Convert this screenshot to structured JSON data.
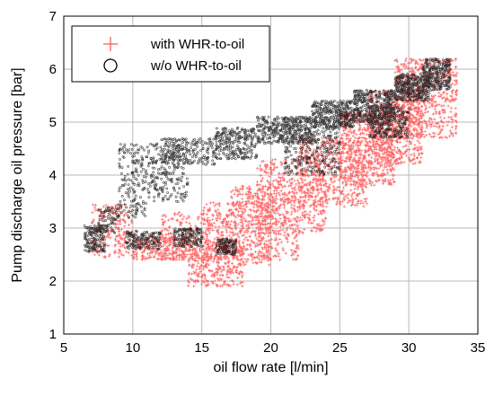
{
  "chart_data": {
    "type": "scatter",
    "xlabel": "oil flow rate [l/min]",
    "ylabel": "Pump discharge oil pressure [bar]",
    "xlim": [
      5,
      35
    ],
    "ylim": [
      1,
      7
    ],
    "xticks": [
      "5",
      "10",
      "15",
      "20",
      "25",
      "30",
      "35"
    ],
    "yticks": [
      "1",
      "2",
      "3",
      "4",
      "5",
      "6",
      "7"
    ],
    "grid": true,
    "legend_position": "top-left",
    "series": [
      {
        "name": "with WHR-to-oil",
        "marker": "plus",
        "color": "#ff5050",
        "clusters": [
          {
            "x": [
              7,
              10
            ],
            "y": [
              2.45,
              3.45
            ],
            "n": 200
          },
          {
            "x": [
              10,
              14
            ],
            "y": [
              2.4,
              2.85
            ],
            "n": 260
          },
          {
            "x": [
              12,
              17
            ],
            "y": [
              2.4,
              3.3
            ],
            "n": 240
          },
          {
            "x": [
              14,
              18
            ],
            "y": [
              1.9,
              2.7
            ],
            "n": 300
          },
          {
            "x": [
              15,
              20
            ],
            "y": [
              2.3,
              3.5
            ],
            "n": 320
          },
          {
            "x": [
              17,
              22
            ],
            "y": [
              2.4,
              3.8
            ],
            "n": 420
          },
          {
            "x": [
              19,
              24
            ],
            "y": [
              2.9,
              4.3
            ],
            "n": 460
          },
          {
            "x": [
              22,
              27
            ],
            "y": [
              3.4,
              4.7
            ],
            "n": 520
          },
          {
            "x": [
              25,
              29
            ],
            "y": [
              3.8,
              5.2
            ],
            "n": 520
          },
          {
            "x": [
              27,
              31
            ],
            "y": [
              4.2,
              5.6
            ],
            "n": 520
          },
          {
            "x": [
              29,
              33.5
            ],
            "y": [
              4.7,
              6.2
            ],
            "n": 560
          }
        ]
      },
      {
        "name": "w/o WHR-to-oil",
        "marker": "circle",
        "color": "#000000",
        "clusters": [
          {
            "x": [
              6.5,
              8
            ],
            "y": [
              2.55,
              3.05
            ],
            "n": 160
          },
          {
            "x": [
              7.5,
              9
            ],
            "y": [
              2.9,
              3.4
            ],
            "n": 80
          },
          {
            "x": [
              9,
              11
            ],
            "y": [
              3.2,
              4.6
            ],
            "n": 160
          },
          {
            "x": [
              9.5,
              12
            ],
            "y": [
              2.6,
              2.95
            ],
            "n": 160
          },
          {
            "x": [
              11,
              14
            ],
            "y": [
              3.5,
              4.6
            ],
            "n": 200
          },
          {
            "x": [
              13,
              15
            ],
            "y": [
              2.65,
              3.0
            ],
            "n": 160
          },
          {
            "x": [
              12,
              16
            ],
            "y": [
              4.2,
              4.7
            ],
            "n": 200
          },
          {
            "x": [
              16,
              17.5
            ],
            "y": [
              2.5,
              2.8
            ],
            "n": 120
          },
          {
            "x": [
              16,
              19
            ],
            "y": [
              4.3,
              4.9
            ],
            "n": 240
          },
          {
            "x": [
              19,
              23
            ],
            "y": [
              4.6,
              5.1
            ],
            "n": 320
          },
          {
            "x": [
              21,
              25
            ],
            "y": [
              4.0,
              5.1
            ],
            "n": 320
          },
          {
            "x": [
              23,
              26
            ],
            "y": [
              4.9,
              5.4
            ],
            "n": 320
          },
          {
            "x": [
              26,
              29
            ],
            "y": [
              5.0,
              5.6
            ],
            "n": 380
          },
          {
            "x": [
              27,
              30
            ],
            "y": [
              4.7,
              5.3
            ],
            "n": 240
          },
          {
            "x": [
              29,
              31.5
            ],
            "y": [
              5.4,
              5.9
            ],
            "n": 320
          },
          {
            "x": [
              31,
              33
            ],
            "y": [
              5.6,
              6.2
            ],
            "n": 260
          }
        ]
      }
    ]
  }
}
